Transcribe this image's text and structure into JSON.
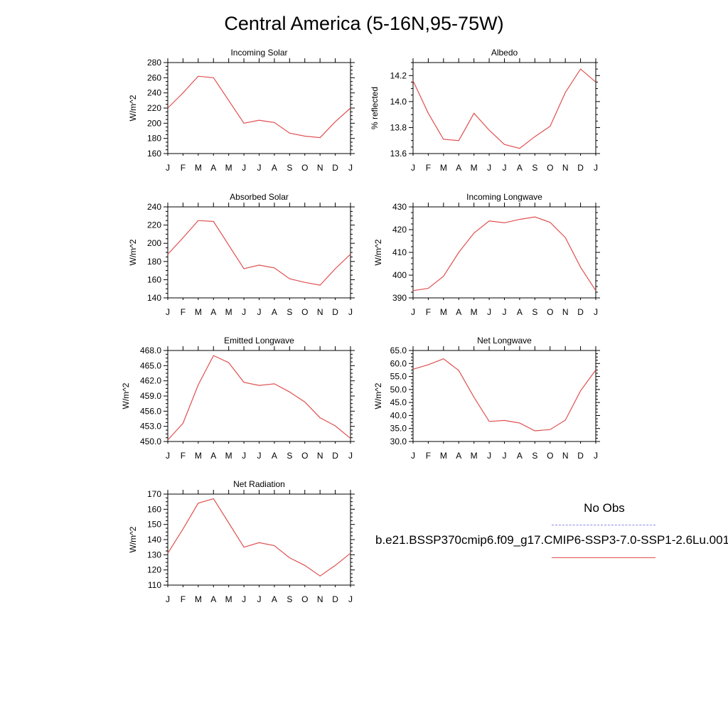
{
  "page": {
    "title": "Central America (5-16N,95-75W)"
  },
  "legend": {
    "obs_label": "No Obs",
    "model_label": "b.e21.BSSP370cmip6.f09_g17.CMIP6-SSP3-7.0-SSP1-2.6Lu.001",
    "obs_color": "#8a8ae6",
    "model_color": "#e05050"
  },
  "chart_data": [
    {
      "id": "incoming-solar",
      "type": "line",
      "title": "Incoming Solar",
      "ylabel": "W/m^2",
      "categories": [
        "J",
        "F",
        "M",
        "A",
        "M",
        "J",
        "J",
        "A",
        "S",
        "O",
        "N",
        "D",
        "J"
      ],
      "ylim": [
        160,
        280
      ],
      "yticks": [
        160,
        180,
        200,
        220,
        240,
        260,
        280
      ],
      "decimals": 0,
      "values": [
        220,
        240,
        262,
        260,
        230,
        200,
        204,
        201,
        187,
        183,
        181,
        202,
        220
      ]
    },
    {
      "id": "albedo",
      "type": "line",
      "title": "Albedo",
      "ylabel": "% reflected",
      "categories": [
        "J",
        "F",
        "M",
        "A",
        "M",
        "J",
        "J",
        "A",
        "S",
        "O",
        "N",
        "D",
        "J"
      ],
      "ylim": [
        13.6,
        14.3
      ],
      "yticks": [
        13.6,
        13.8,
        14.0,
        14.2
      ],
      "decimals": 1,
      "values": [
        14.16,
        13.91,
        13.71,
        13.7,
        13.91,
        13.78,
        13.67,
        13.64,
        13.73,
        13.81,
        14.07,
        14.25,
        14.15
      ]
    },
    {
      "id": "absorbed-solar",
      "type": "line",
      "title": "Absorbed Solar",
      "ylabel": "W/m^2",
      "categories": [
        "J",
        "F",
        "M",
        "A",
        "M",
        "J",
        "J",
        "A",
        "S",
        "O",
        "N",
        "D",
        "J"
      ],
      "ylim": [
        140,
        240
      ],
      "yticks": [
        140,
        160,
        180,
        200,
        220,
        240
      ],
      "decimals": 0,
      "values": [
        188,
        206,
        225,
        224,
        198,
        172,
        176,
        173,
        161,
        157,
        154,
        172,
        188
      ]
    },
    {
      "id": "incoming-longwave",
      "type": "line",
      "title": "Incoming Longwave",
      "ylabel": "W/m^2",
      "categories": [
        "J",
        "F",
        "M",
        "A",
        "M",
        "J",
        "J",
        "A",
        "S",
        "O",
        "N",
        "D",
        "J"
      ],
      "ylim": [
        390,
        430
      ],
      "yticks": [
        390,
        400,
        410,
        420,
        430
      ],
      "decimals": 0,
      "values": [
        393.2,
        394.2,
        399.5,
        410.0,
        418.5,
        423.8,
        423.0,
        424.5,
        425.6,
        423.2,
        416.5,
        403.5,
        393.2
      ]
    },
    {
      "id": "emitted-longwave",
      "type": "line",
      "title": "Emitted Longwave",
      "ylabel": "W/m^2",
      "categories": [
        "J",
        "F",
        "M",
        "A",
        "M",
        "J",
        "J",
        "A",
        "S",
        "O",
        "N",
        "D",
        "J"
      ],
      "ylim": [
        450,
        468
      ],
      "yticks": [
        450,
        453,
        456,
        459,
        462,
        465,
        468
      ],
      "decimals": 1,
      "values": [
        450.3,
        453.6,
        461.2,
        467.0,
        465.6,
        461.7,
        461.1,
        461.4,
        459.8,
        457.8,
        454.7,
        453.1,
        450.6
      ]
    },
    {
      "id": "net-longwave",
      "type": "line",
      "title": "Net Longwave",
      "ylabel": "W/m^2",
      "categories": [
        "J",
        "F",
        "M",
        "A",
        "M",
        "J",
        "J",
        "A",
        "S",
        "O",
        "N",
        "D",
        "J"
      ],
      "ylim": [
        30,
        65
      ],
      "yticks": [
        30,
        35,
        40,
        45,
        50,
        55,
        60,
        65
      ],
      "decimals": 1,
      "values": [
        57.8,
        59.5,
        61.8,
        57.3,
        47.0,
        37.7,
        38.1,
        37.1,
        34.1,
        34.6,
        38.2,
        49.5,
        57.5
      ]
    },
    {
      "id": "net-radiation",
      "type": "line",
      "title": "Net Radiation",
      "ylabel": "W/m^2",
      "categories": [
        "J",
        "F",
        "M",
        "A",
        "M",
        "J",
        "J",
        "A",
        "S",
        "O",
        "N",
        "D",
        "J"
      ],
      "ylim": [
        110,
        170
      ],
      "yticks": [
        110,
        120,
        130,
        140,
        150,
        160,
        170
      ],
      "decimals": 0,
      "values": [
        131,
        147,
        164,
        167,
        151,
        135,
        138,
        136,
        128,
        123,
        116,
        123,
        131
      ]
    }
  ]
}
